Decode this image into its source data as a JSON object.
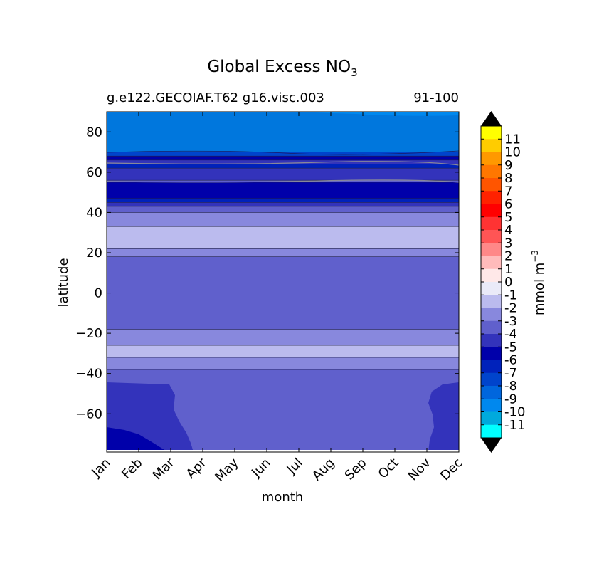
{
  "chart_data": {
    "type": "contourf",
    "title": "Global Excess NO",
    "title_subscript": "3",
    "subtitle_left": "g.e122.GECOIAF.T62 g16.visc.003",
    "subtitle_right": "91-100",
    "xlabel": "month",
    "ylabel": "latitude",
    "x_categories": [
      "Jan",
      "Feb",
      "Mar",
      "Apr",
      "May",
      "Jun",
      "Jul",
      "Aug",
      "Sep",
      "Oct",
      "Nov",
      "Dec"
    ],
    "ylim": [
      -79,
      90
    ],
    "yticks": [
      -60,
      -40,
      -20,
      0,
      20,
      40,
      60,
      80
    ],
    "ytick_labels": [
      "−60",
      "−40",
      "−20",
      "0",
      "20",
      "40",
      "60",
      "80"
    ],
    "legend": "colorbar-right",
    "colorbar": {
      "label": "mmol m",
      "label_sup": "−3",
      "levels": [
        11,
        10,
        9,
        8,
        7,
        6,
        5,
        4,
        3,
        2,
        1,
        0,
        -1,
        -2,
        -3,
        -4,
        -5,
        -6,
        -7,
        -8,
        -9,
        -10,
        -11
      ],
      "labels": [
        "11",
        "10",
        "9",
        "8",
        "7",
        "6",
        "5",
        "4",
        "3",
        "2",
        "1",
        "0",
        "-1",
        "-2",
        "-3",
        "-4",
        "-5",
        "-6",
        "-7",
        "-8",
        "-9",
        "-10",
        "-11"
      ],
      "colors": [
        "#ffff00",
        "#ffcc00",
        "#ff9900",
        "#ff7700",
        "#ff5500",
        "#ff2200",
        "#ff0000",
        "#ff3333",
        "#ff5555",
        "#ff8888",
        "#ffbbbb",
        "#ffe8e8",
        "#eaeaf8",
        "#bbbbee",
        "#8888dd",
        "#6060cc",
        "#3333bb",
        "#0000aa",
        "#0022bb",
        "#0044cc",
        "#0066dd",
        "#0088ee",
        "#00aadd",
        "#00ffff"
      ],
      "over_color": "#000000",
      "under_color": "#000000"
    },
    "bands": [
      {
        "y0": 70,
        "y1": 90,
        "color": "#0077dd"
      },
      {
        "y0": 68,
        "y1": 70,
        "color": "#0044cc"
      },
      {
        "y0": 66,
        "y1": 68,
        "color": "#0000aa"
      },
      {
        "y0": 64,
        "y1": 66,
        "color": "#3333bb"
      },
      {
        "y0": 62,
        "y1": 64,
        "color": "#0022bb"
      },
      {
        "y0": 56,
        "y1": 62,
        "color": "#3333bb"
      },
      {
        "y0": 55,
        "y1": 56,
        "color": "#6060cc"
      },
      {
        "y0": 47,
        "y1": 55,
        "color": "#0000aa"
      },
      {
        "y0": 45,
        "y1": 47,
        "color": "#0022bb"
      },
      {
        "y0": 43,
        "y1": 45,
        "color": "#3333bb"
      },
      {
        "y0": 40,
        "y1": 43,
        "color": "#6060cc"
      },
      {
        "y0": 33,
        "y1": 40,
        "color": "#8888dd"
      },
      {
        "y0": 22,
        "y1": 33,
        "color": "#bbbbee"
      },
      {
        "y0": 18,
        "y1": 22,
        "color": "#8888dd"
      },
      {
        "y0": -18,
        "y1": 18,
        "color": "#6060cc"
      },
      {
        "y0": -26,
        "y1": -18,
        "color": "#8888dd"
      },
      {
        "y0": -32,
        "y1": -26,
        "color": "#bbbbee"
      },
      {
        "y0": -38,
        "y1": -32,
        "color": "#8888dd"
      },
      {
        "y0": -79,
        "y1": -38,
        "color": "#6060cc"
      }
    ]
  }
}
